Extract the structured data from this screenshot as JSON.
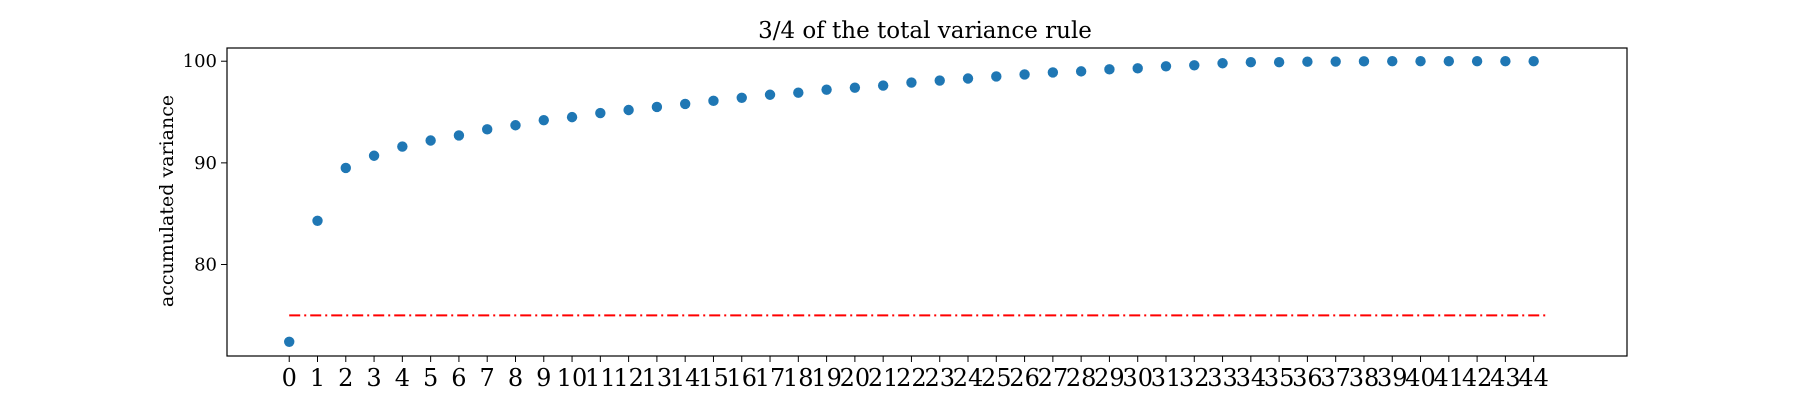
{
  "chart_data": {
    "type": "scatter",
    "title": "3/4 of the total variance rule",
    "xlabel": "",
    "ylabel": "accumulated variance",
    "x": [
      0,
      1,
      2,
      3,
      4,
      5,
      6,
      7,
      8,
      9,
      10,
      11,
      12,
      13,
      14,
      15,
      16,
      17,
      18,
      19,
      20,
      21,
      22,
      23,
      24,
      25,
      26,
      27,
      28,
      29,
      30,
      31,
      32,
      33,
      34,
      35,
      36,
      37,
      38,
      39,
      40,
      41,
      42,
      43,
      44
    ],
    "series": [
      {
        "values": [
          72.4,
          84.3,
          89.5,
          90.7,
          91.6,
          92.2,
          92.7,
          93.3,
          93.7,
          94.2,
          94.5,
          94.9,
          95.2,
          95.5,
          95.8,
          96.1,
          96.4,
          96.7,
          96.9,
          97.2,
          97.4,
          97.6,
          97.9,
          98.1,
          98.3,
          98.5,
          98.7,
          98.9,
          99.0,
          99.2,
          99.3,
          99.5,
          99.6,
          99.8,
          99.9,
          99.9,
          99.95,
          99.97,
          99.99,
          100.0,
          100.0,
          100.0,
          100.0,
          100.0,
          100.0
        ],
        "color": "#1f77b4"
      }
    ],
    "threshold": {
      "y": 75,
      "x_start": 0,
      "x_end": 44.5,
      "color": "#ff0000",
      "style": "dash-dot"
    },
    "ylim": [
      71,
      101.3
    ],
    "xlim": [
      -2.2,
      47.3
    ],
    "yticks": [
      80,
      90,
      100
    ],
    "xticks": [
      0,
      1,
      2,
      3,
      4,
      5,
      6,
      7,
      8,
      9,
      10,
      11,
      12,
      13,
      14,
      15,
      16,
      17,
      18,
      19,
      20,
      21,
      22,
      23,
      24,
      25,
      26,
      27,
      28,
      29,
      30,
      31,
      32,
      33,
      34,
      35,
      36,
      37,
      38,
      39,
      40,
      41,
      42,
      43,
      44
    ],
    "grid": false,
    "legend": "none"
  }
}
